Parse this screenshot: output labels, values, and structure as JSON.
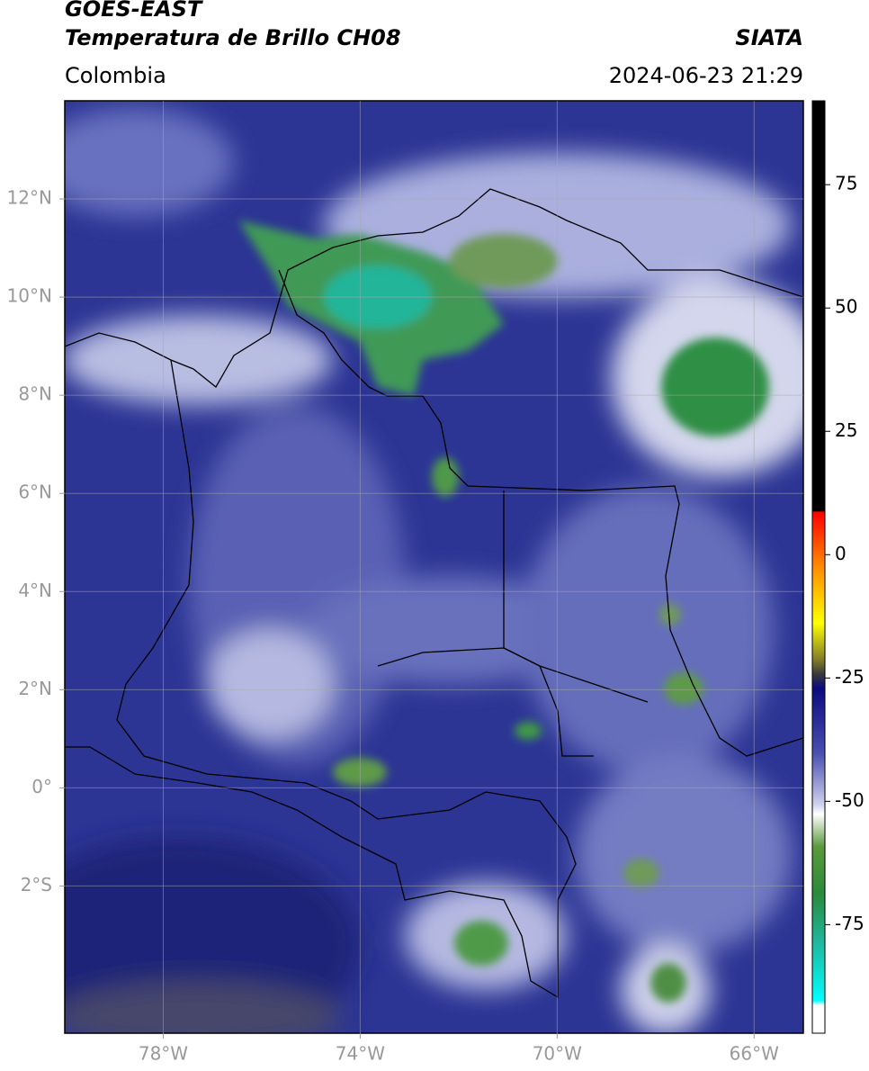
{
  "header": {
    "title_line1": "GOES-EAST",
    "title_line2": "Temperatura de Brillo CH08",
    "region": "Colombia",
    "source": "SIATA",
    "datetime": "2024-06-23 21:29"
  },
  "map": {
    "xlim": [
      -80,
      -65
    ],
    "ylim": [
      -5,
      14
    ],
    "xticks": [
      {
        "value": -78,
        "label": "78°W"
      },
      {
        "value": -74,
        "label": "74°W"
      },
      {
        "value": -70,
        "label": "70°W"
      },
      {
        "value": -66,
        "label": "66°W"
      }
    ],
    "yticks": [
      {
        "value": 12,
        "label": "12°N"
      },
      {
        "value": 10,
        "label": "10°N"
      },
      {
        "value": 8,
        "label": "8°N"
      },
      {
        "value": 6,
        "label": "6°N"
      },
      {
        "value": 4,
        "label": "4°N"
      },
      {
        "value": 2,
        "label": "2°N"
      },
      {
        "value": 0,
        "label": "0°"
      },
      {
        "value": -2,
        "label": "2°S"
      }
    ],
    "grid": true
  },
  "colorbar": {
    "ylim": [
      -97,
      92
    ],
    "yticks": [
      75,
      50,
      25,
      0,
      -25,
      -50,
      -75
    ]
  }
}
